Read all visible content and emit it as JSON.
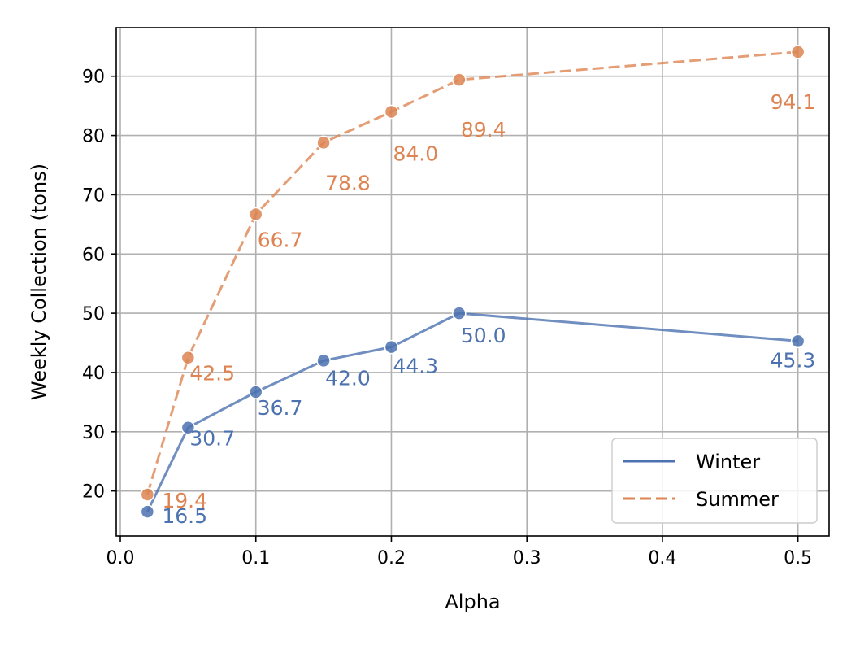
{
  "chart_data": {
    "type": "line",
    "title": "",
    "xlabel": "Alpha",
    "ylabel": "Weekly Collection (tons)",
    "x": [
      0.02,
      0.05,
      0.1,
      0.15,
      0.2,
      0.25,
      0.5
    ],
    "xlim": [
      -0.003,
      0.523
    ],
    "ylim": [
      12.4,
      98.2
    ],
    "xticks": [
      0.0,
      0.1,
      0.2,
      0.3,
      0.4,
      0.5
    ],
    "xtick_labels": [
      "0.0",
      "0.1",
      "0.2",
      "0.3",
      "0.4",
      "0.5"
    ],
    "yticks": [
      20,
      30,
      40,
      50,
      60,
      70,
      80,
      90
    ],
    "ytick_labels": [
      "20",
      "30",
      "40",
      "50",
      "60",
      "70",
      "80",
      "90"
    ],
    "grid": true,
    "legend_position": "lower-right",
    "series": [
      {
        "name": "Winter",
        "color": "#4c72b0",
        "line_style": "solid",
        "marker": "circle",
        "values": [
          16.5,
          30.7,
          36.7,
          42.0,
          44.3,
          50.0,
          45.3
        ],
        "labels": [
          "16.5",
          "30.7",
          "36.7",
          "42.0",
          "44.3",
          "50.0",
          "45.3"
        ]
      },
      {
        "name": "Summer",
        "color": "#dd8452",
        "line_style": "dashed",
        "marker": "circle",
        "values": [
          19.4,
          42.5,
          66.7,
          78.8,
          84.0,
          89.4,
          94.1
        ],
        "labels": [
          "19.4",
          "42.5",
          "66.7",
          "78.8",
          "84.0",
          "89.4",
          "94.1"
        ]
      }
    ]
  }
}
